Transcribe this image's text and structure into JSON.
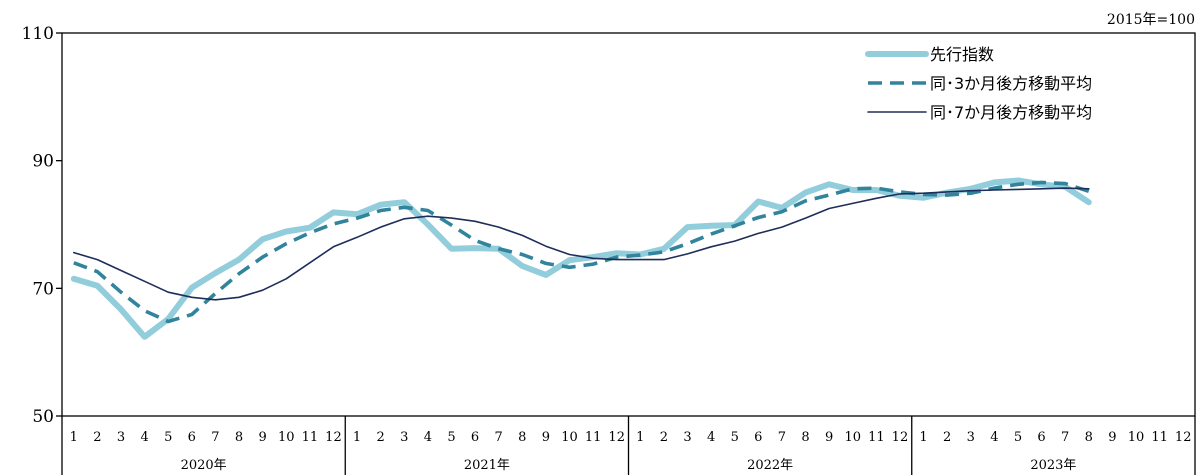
{
  "chart_data": {
    "type": "line",
    "unit_note": "2015年=100",
    "ylim": [
      50,
      110
    ],
    "yticks": [
      "50",
      "70",
      "90",
      "110"
    ],
    "years": [
      {
        "label": "2020年",
        "months": [
          "1",
          "2",
          "3",
          "4",
          "5",
          "6",
          "7",
          "8",
          "9",
          "10",
          "11",
          "12"
        ]
      },
      {
        "label": "2021年",
        "months": [
          "1",
          "2",
          "3",
          "4",
          "5",
          "6",
          "7",
          "8",
          "9",
          "10",
          "11",
          "12"
        ]
      },
      {
        "label": "2022年",
        "months": [
          "1",
          "2",
          "3",
          "4",
          "5",
          "6",
          "7",
          "8",
          "9",
          "10",
          "11",
          "12"
        ]
      },
      {
        "label": "2023年",
        "months": [
          "1",
          "2",
          "3",
          "4",
          "5",
          "6",
          "7",
          "8",
          "9",
          "10",
          "11",
          "12"
        ]
      }
    ],
    "grid": false,
    "legend_position": "top-right",
    "series": [
      {
        "name": "先行指数",
        "style": "thick",
        "color": "#92cddc",
        "values": [
          71.5,
          70.4,
          66.7,
          62.4,
          65.2,
          70.1,
          72.4,
          74.5,
          77.7,
          78.9,
          79.5,
          81.9,
          81.6,
          83.1,
          83.5,
          80.0,
          76.2,
          76.3,
          76.2,
          73.5,
          72.1,
          74.4,
          74.9,
          75.5,
          75.3,
          76.2,
          79.6,
          79.8,
          79.9,
          83.6,
          82.6,
          85.0,
          86.3,
          85.4,
          85.4,
          84.5,
          84.2,
          85.0,
          85.6,
          86.6,
          86.9,
          86.3,
          85.9,
          83.5
        ]
      },
      {
        "name": "同･3か月後方移動平均",
        "style": "dashed",
        "color": "#31849b",
        "values": [
          74.0,
          72.6,
          69.4,
          66.5,
          64.8,
          65.9,
          69.2,
          72.3,
          74.9,
          77.0,
          78.7,
          80.1,
          81.0,
          82.2,
          82.7,
          82.2,
          79.9,
          77.5,
          76.2,
          75.3,
          73.9,
          73.3,
          73.8,
          74.9,
          75.2,
          75.7,
          77.0,
          78.5,
          79.8,
          81.1,
          82.0,
          83.7,
          84.6,
          85.6,
          85.7,
          85.1,
          84.7,
          84.6,
          84.9,
          85.7,
          86.3,
          86.6,
          86.4,
          85.2
        ]
      },
      {
        "name": "同･7か月後方移動平均",
        "style": "thin",
        "color": "#1f2d5a",
        "values": [
          75.6,
          74.5,
          72.8,
          71.1,
          69.4,
          68.6,
          68.2,
          68.6,
          69.7,
          71.5,
          74.0,
          76.5,
          78.0,
          79.6,
          80.9,
          81.3,
          81.0,
          80.5,
          79.6,
          78.3,
          76.6,
          75.3,
          74.7,
          74.5,
          74.5,
          74.5,
          75.4,
          76.5,
          77.4,
          78.6,
          79.6,
          81.0,
          82.5,
          83.3,
          84.1,
          84.8,
          84.9,
          85.1,
          85.3,
          85.4,
          85.5,
          85.6,
          85.7,
          85.6
        ]
      }
    ]
  }
}
